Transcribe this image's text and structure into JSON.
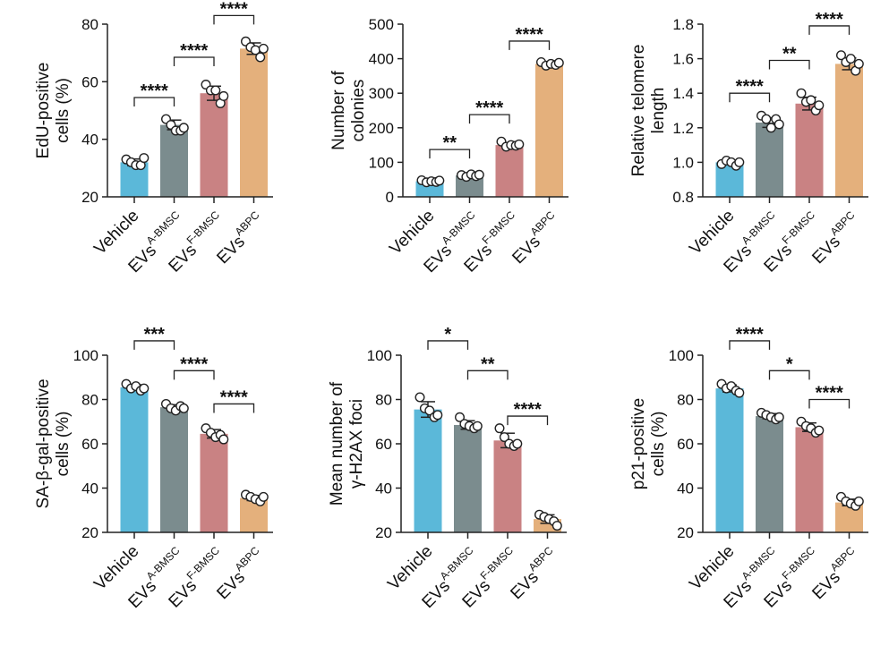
{
  "colors": {
    "Vehicle": "#5bb8d9",
    "A-BMSC": "#7b8c8e",
    "F-BMSC": "#c98283",
    "ABPC": "#e4b07c"
  },
  "groups": [
    {
      "base": "Vehicle",
      "sup": ""
    },
    {
      "base": "EVs",
      "sup": "A-BMSC"
    },
    {
      "base": "EVs",
      "sup": "F-BMSC"
    },
    {
      "base": "EVs",
      "sup": "ABPC"
    }
  ],
  "chart_data": [
    {
      "type": "bar",
      "ylabel": [
        "EdU-positive",
        "cells (%)"
      ],
      "ylim": [
        20,
        80
      ],
      "yticks": [
        "20",
        "40",
        "60",
        "80"
      ],
      "values": [
        32,
        45,
        56,
        71.5
      ],
      "points": [
        [
          33,
          32,
          31,
          31,
          33.5
        ],
        [
          47,
          45,
          43,
          43,
          44
        ],
        [
          59,
          57,
          57,
          52.5,
          55
        ],
        [
          74,
          72,
          71,
          68.5,
          71.5
        ]
      ],
      "sig": [
        {
          "from": 0,
          "to": 1,
          "label": "****",
          "y": 54.5
        },
        {
          "from": 1,
          "to": 2,
          "label": "****",
          "y": 68.5
        },
        {
          "from": 2,
          "to": 3,
          "label": "****",
          "y": 83
        }
      ]
    },
    {
      "type": "bar",
      "ylabel": [
        "Number of",
        "colonies"
      ],
      "ylim": [
        0,
        500
      ],
      "yticks": [
        "0",
        "100",
        "200",
        "300",
        "400",
        "500"
      ],
      "values": [
        45,
        62,
        150,
        385
      ],
      "points": [
        [
          48,
          42,
          45,
          43,
          47
        ],
        [
          63,
          58,
          65,
          60,
          64
        ],
        [
          160,
          145,
          150,
          148,
          152
        ],
        [
          390,
          380,
          385,
          382,
          388
        ]
      ],
      "sig": [
        {
          "from": 0,
          "to": 1,
          "label": "**",
          "y": 137
        },
        {
          "from": 1,
          "to": 2,
          "label": "****",
          "y": 238
        },
        {
          "from": 2,
          "to": 3,
          "label": "****",
          "y": 451
        }
      ]
    },
    {
      "type": "bar",
      "ylabel": [
        "Relative telomere",
        "length"
      ],
      "ylim": [
        0.8,
        1.8
      ],
      "yticks": [
        "0.8",
        "1.0",
        "1.2",
        "1.4",
        "1.6",
        "1.8"
      ],
      "values": [
        1.0,
        1.23,
        1.34,
        1.57
      ],
      "points": [
        [
          0.99,
          1.01,
          1.0,
          0.98,
          1.0
        ],
        [
          1.27,
          1.25,
          1.2,
          1.25,
          1.22
        ],
        [
          1.4,
          1.35,
          1.36,
          1.3,
          1.33
        ],
        [
          1.62,
          1.58,
          1.6,
          1.53,
          1.57
        ]
      ],
      "sig": [
        {
          "from": 0,
          "to": 1,
          "label": "****",
          "y": 1.4
        },
        {
          "from": 1,
          "to": 2,
          "label": "**",
          "y": 1.59
        },
        {
          "from": 2,
          "to": 3,
          "label": "****",
          "y": 1.79
        }
      ]
    },
    {
      "type": "bar",
      "ylabel": [
        "SA-β-gal-positive",
        "cells (%)"
      ],
      "ylim": [
        20,
        100
      ],
      "yticks": [
        "20",
        "40",
        "60",
        "80",
        "100"
      ],
      "values": [
        85.5,
        76.5,
        64.5,
        35.5
      ],
      "points": [
        [
          87,
          85,
          86,
          84,
          85
        ],
        [
          78,
          76,
          75,
          77,
          76
        ],
        [
          67,
          65,
          63,
          64,
          62
        ],
        [
          37,
          36,
          35,
          34,
          36
        ]
      ],
      "sig": [
        {
          "from": 0,
          "to": 1,
          "label": "***",
          "y": 106.5
        },
        {
          "from": 1,
          "to": 2,
          "label": "****",
          "y": 93
        },
        {
          "from": 2,
          "to": 3,
          "label": "****",
          "y": 78
        }
      ]
    },
    {
      "type": "bar",
      "ylabel": [
        "Mean number of",
        "γ-H2AX foci"
      ],
      "ylim": [
        20,
        100
      ],
      "yticks": [
        "20",
        "40",
        "60",
        "80",
        "100"
      ],
      "values": [
        75.5,
        68.5,
        61.5,
        26
      ],
      "points": [
        [
          81,
          76,
          75,
          72,
          73
        ],
        [
          72,
          69,
          68,
          67,
          68
        ],
        [
          67,
          63,
          60,
          59,
          60
        ],
        [
          28,
          27,
          26,
          25,
          23
        ]
      ],
      "sig": [
        {
          "from": 0,
          "to": 1,
          "label": "*",
          "y": 106.5
        },
        {
          "from": 1,
          "to": 2,
          "label": "**",
          "y": 93
        },
        {
          "from": 2,
          "to": 3,
          "label": "****",
          "y": 72.5
        }
      ]
    },
    {
      "type": "bar",
      "ylabel": [
        "p21-positive",
        "cells (%)"
      ],
      "ylim": [
        20,
        100
      ],
      "yticks": [
        "20",
        "40",
        "60",
        "80",
        "100"
      ],
      "values": [
        85,
        72.5,
        67.5,
        33.5
      ],
      "points": [
        [
          87,
          85,
          86,
          84,
          83
        ],
        [
          74,
          73,
          72,
          71,
          72
        ],
        [
          70,
          68,
          67,
          65,
          66
        ],
        [
          36,
          34,
          33,
          32,
          34
        ]
      ],
      "sig": [
        {
          "from": 0,
          "to": 1,
          "label": "****",
          "y": 106.5
        },
        {
          "from": 1,
          "to": 2,
          "label": "*",
          "y": 93
        },
        {
          "from": 2,
          "to": 3,
          "label": "****",
          "y": 80
        }
      ]
    }
  ]
}
